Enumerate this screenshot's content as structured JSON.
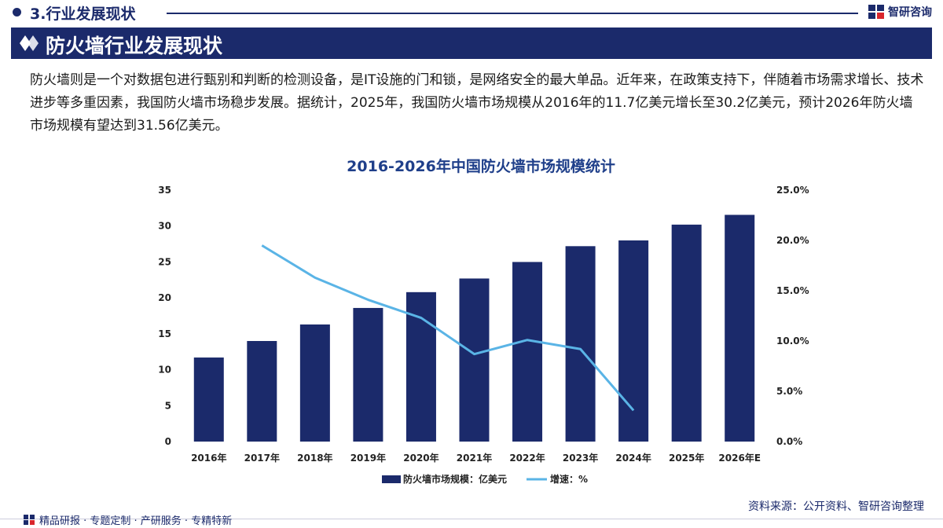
{
  "header": {
    "section_title": "3.行业发展现状",
    "brand": "智研咨询"
  },
  "banner": {
    "title": "防火墙行业发展现状"
  },
  "intro": "防火墙则是一个对数据包进行甄别和判断的检测设备，是IT设施的门和锁，是网络安全的最大单品。近年来，在政策支持下，伴随着市场需求增长、技术进步等多重因素，我国防火墙市场稳步发展。据统计，2025年，我国防火墙市场规模从2016年的11.7亿美元增长至30.2亿美元，预计2026年防火墙市场规模有望达到31.56亿美元。",
  "colors": {
    "bar": "#1b2a6b",
    "line": "#5ab4e6",
    "title": "#1f3f8a"
  },
  "chart_data": {
    "type": "bar",
    "title": "2016-2026年中国防火墙市场规模统计",
    "categories": [
      "2016年",
      "2017年",
      "2018年",
      "2019年",
      "2020年",
      "2021年",
      "2022年",
      "2023年",
      "2024年",
      "2025年",
      "2026年E"
    ],
    "series": [
      {
        "name": "防火墙市场规模：亿美元",
        "type": "bar",
        "axis": "left",
        "values": [
          11.7,
          14.0,
          16.3,
          18.6,
          20.8,
          22.7,
          25.0,
          27.2,
          28.0,
          30.2,
          31.56
        ]
      },
      {
        "name": "增速：%",
        "type": "line",
        "axis": "right",
        "values": [
          null,
          19.5,
          16.3,
          14.1,
          12.3,
          8.7,
          10.1,
          9.2,
          3.1,
          null,
          null
        ]
      }
    ],
    "y_left": {
      "min": 0,
      "max": 35,
      "ticks": [
        "0",
        "5",
        "10",
        "15",
        "20",
        "25",
        "30",
        "35"
      ]
    },
    "y_right": {
      "min": 0,
      "max": 25,
      "ticks": [
        "0.0%",
        "5.0%",
        "10.0%",
        "15.0%",
        "20.0%",
        "25.0%"
      ]
    },
    "legend": [
      "防火墙市场规模：亿美元",
      "增速：%"
    ]
  },
  "footer": {
    "services": "精品研报 · 专题定制 · 产研服务 · 专精特新",
    "source": "资料来源：公开资料、智研咨询整理"
  }
}
